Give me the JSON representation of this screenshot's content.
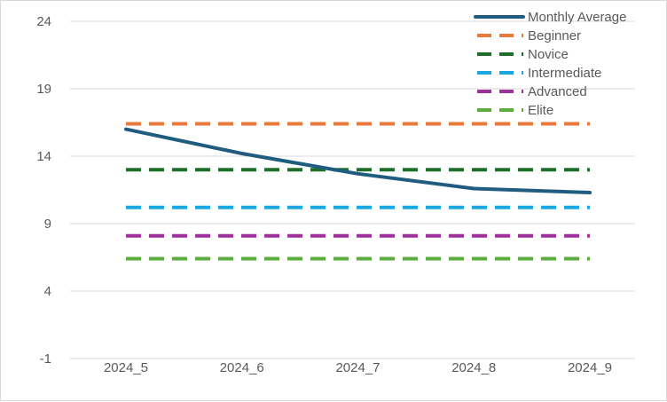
{
  "chart_data": {
    "type": "line",
    "title": "",
    "xlabel": "",
    "ylabel": "",
    "categories": [
      "2024_5",
      "2024_6",
      "2024_7",
      "2024_8",
      "2024_9"
    ],
    "y_ticks": [
      "24",
      "19",
      "14",
      "9",
      "4",
      "-1"
    ],
    "ylim": [
      -1,
      24
    ],
    "grid": "horizontal",
    "legend_position": "top-right",
    "series": [
      {
        "name": "Monthly Average",
        "values": [
          16.0,
          14.2,
          12.7,
          11.6,
          11.3
        ],
        "color": "#1f5c80",
        "style": "solid"
      },
      {
        "name": "Beginner",
        "values": [
          16.4,
          16.4,
          16.4,
          16.4,
          16.4
        ],
        "color": "#e97a3b",
        "style": "dashed"
      },
      {
        "name": "Novice",
        "values": [
          13.0,
          13.0,
          13.0,
          13.0,
          13.0
        ],
        "color": "#1e6e2a",
        "style": "dashed"
      },
      {
        "name": "Intermediate",
        "values": [
          10.2,
          10.2,
          10.2,
          10.2,
          10.2
        ],
        "color": "#1ba7e0",
        "style": "dashed"
      },
      {
        "name": "Advanced",
        "values": [
          8.1,
          8.1,
          8.1,
          8.1,
          8.1
        ],
        "color": "#a0309c",
        "style": "dashed"
      },
      {
        "name": "Elite",
        "values": [
          6.4,
          6.4,
          6.4,
          6.4,
          6.4
        ],
        "color": "#5bab3d",
        "style": "dashed"
      }
    ]
  }
}
